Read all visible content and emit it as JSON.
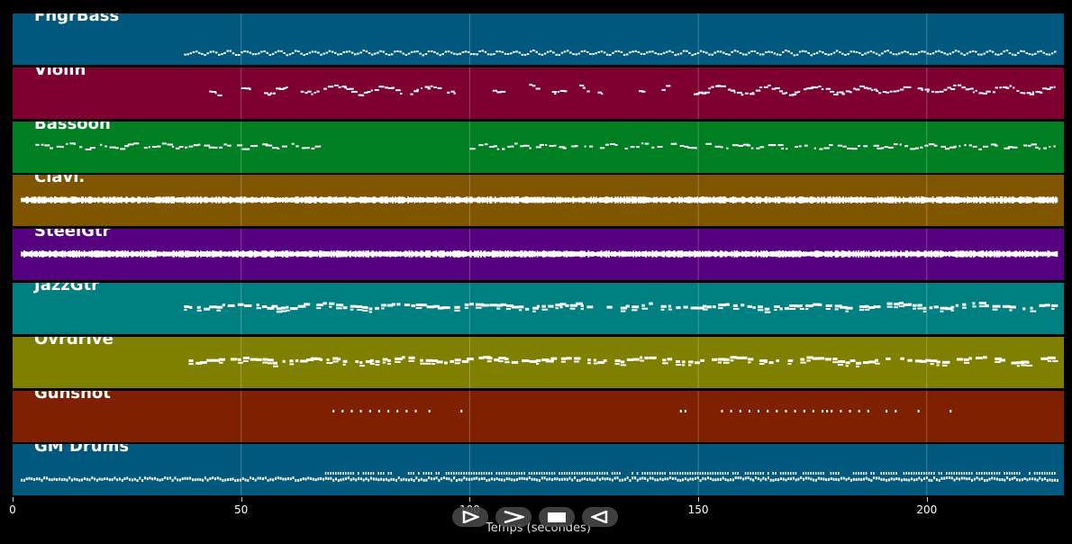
{
  "tracks": [
    {
      "name": "FngrBass",
      "color": "#00587f",
      "pattern": "bass"
    },
    {
      "name": "Violin",
      "color": "#7e0030",
      "pattern": "violin"
    },
    {
      "name": "Bassoon",
      "color": "#007e22",
      "pattern": "bassoon"
    },
    {
      "name": "Clavi.",
      "color": "#7f5500",
      "pattern": "dense"
    },
    {
      "name": "SteelGtr",
      "color": "#56007f",
      "pattern": "dense"
    },
    {
      "name": "JazzGtr",
      "color": "#007f80",
      "pattern": "chords"
    },
    {
      "name": "Ovrdrive",
      "color": "#7f7f00",
      "pattern": "chords"
    },
    {
      "name": "Gunshot",
      "color": "#7f2100",
      "pattern": "gunshot"
    },
    {
      "name": "GM Drums",
      "color": "#00587f",
      "pattern": "drums"
    }
  ],
  "axis": {
    "ticks": [
      "0",
      "50",
      "100",
      "150",
      "200"
    ],
    "tick_values": [
      0,
      50,
      100,
      150,
      200
    ],
    "max_seconds": 230,
    "title": "Temps (secondes)"
  },
  "controls": [
    {
      "name": "play-button",
      "icon": "play-outline-icon"
    },
    {
      "name": "forward-button",
      "icon": "chevron-right-icon"
    },
    {
      "name": "stop-button",
      "icon": "stop-icon"
    },
    {
      "name": "rewind-button",
      "icon": "rewind-icon"
    }
  ]
}
